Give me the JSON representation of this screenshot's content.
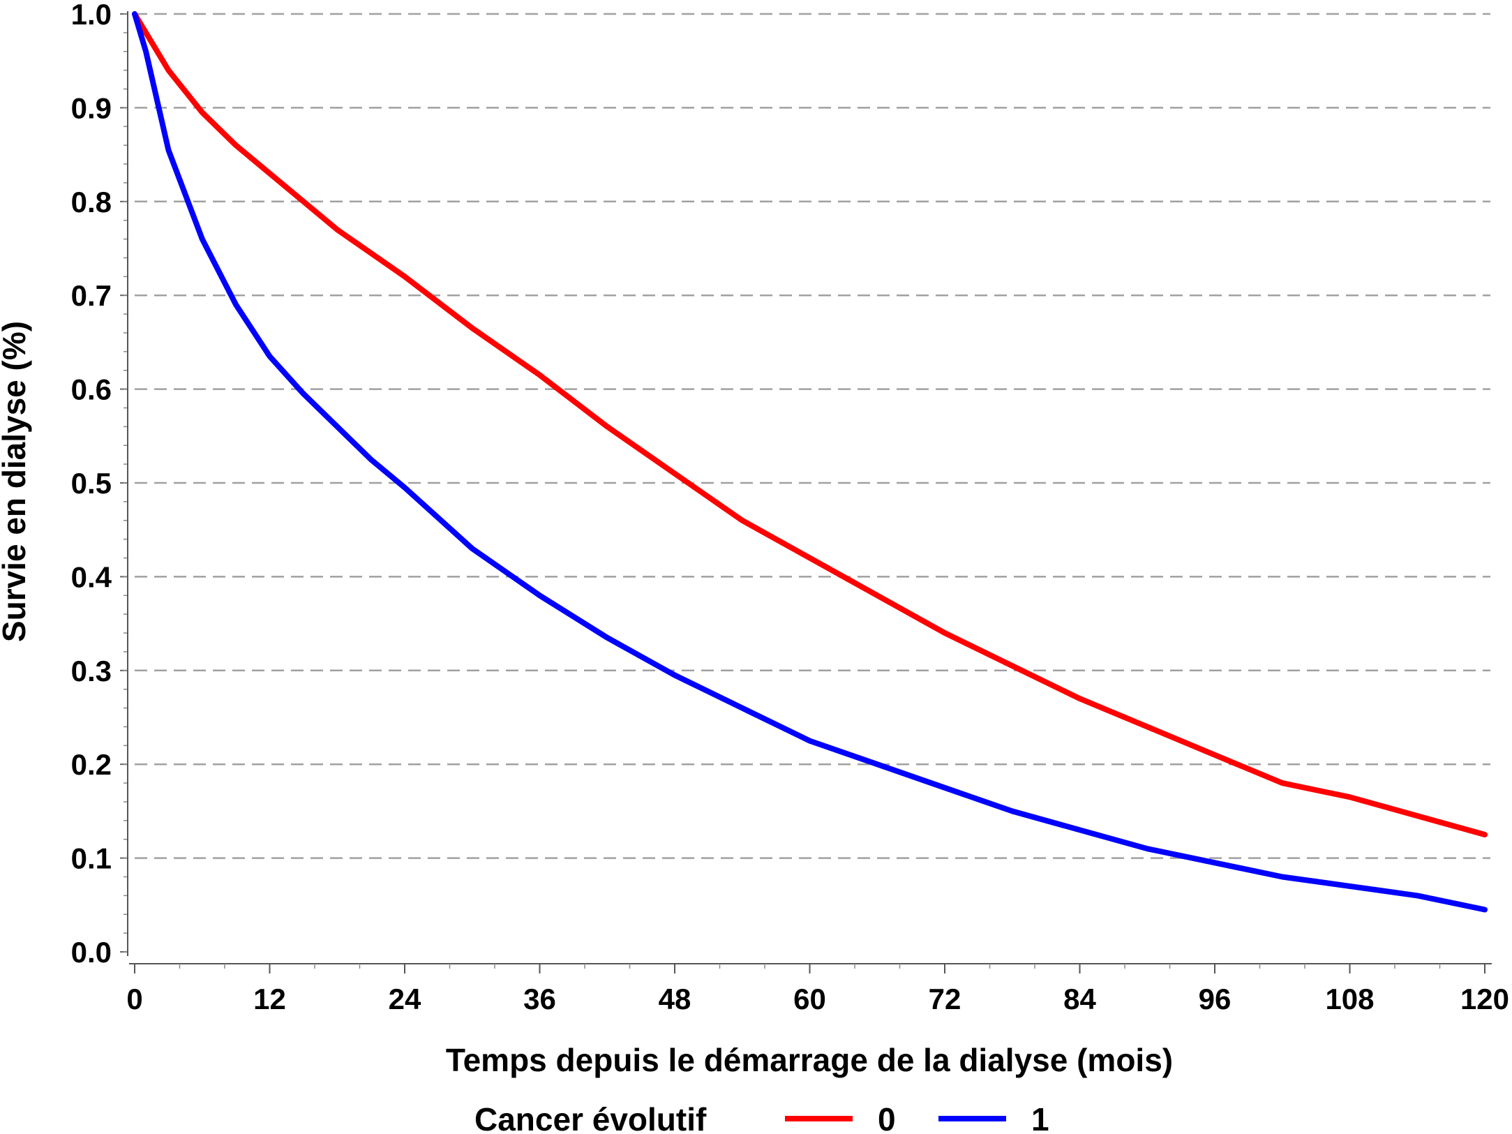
{
  "chart_data": {
    "type": "line",
    "xlabel": "Temps depuis le démarrage de la dialyse (mois)",
    "ylabel": "Survie en dialyse (%)",
    "xlim": [
      0,
      120
    ],
    "ylim": [
      0.0,
      1.0
    ],
    "x_ticks": [
      "0",
      "12",
      "24",
      "36",
      "48",
      "60",
      "72",
      "84",
      "96",
      "108",
      "120"
    ],
    "y_ticks": [
      "0.0",
      "0.1",
      "0.2",
      "0.3",
      "0.4",
      "0.5",
      "0.6",
      "0.7",
      "0.8",
      "0.9",
      "1.0"
    ],
    "grid": "horizontal dashed",
    "legend": {
      "title": "Cancer évolutif",
      "position": "bottom"
    },
    "series": [
      {
        "name": "0",
        "color": "#ff0000",
        "x": [
          0,
          3,
          6,
          9,
          12,
          18,
          24,
          30,
          36,
          42,
          48,
          54,
          60,
          66,
          72,
          78,
          84,
          90,
          96,
          102,
          108,
          114,
          120
        ],
        "y": [
          1.0,
          0.94,
          0.895,
          0.86,
          0.83,
          0.77,
          0.72,
          0.665,
          0.615,
          0.56,
          0.51,
          0.46,
          0.42,
          0.38,
          0.34,
          0.305,
          0.27,
          0.24,
          0.21,
          0.18,
          0.165,
          0.145,
          0.125
        ]
      },
      {
        "name": "1",
        "color": "#0000ff",
        "x": [
          0,
          1,
          3,
          6,
          9,
          12,
          15,
          18,
          21,
          24,
          30,
          36,
          42,
          48,
          54,
          60,
          66,
          72,
          78,
          84,
          90,
          96,
          102,
          108,
          114,
          120
        ],
        "y": [
          1.0,
          0.96,
          0.855,
          0.76,
          0.69,
          0.635,
          0.595,
          0.56,
          0.525,
          0.495,
          0.43,
          0.38,
          0.335,
          0.295,
          0.26,
          0.225,
          0.2,
          0.175,
          0.15,
          0.13,
          0.11,
          0.095,
          0.08,
          0.07,
          0.06,
          0.045
        ]
      }
    ]
  }
}
